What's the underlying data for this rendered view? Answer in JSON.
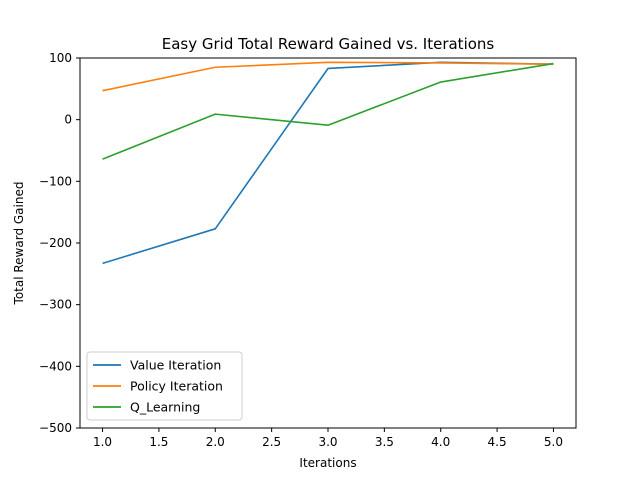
{
  "chart_data": {
    "type": "line",
    "title": "Easy Grid Total Reward Gained vs. Iterations",
    "xlabel": "Iterations",
    "ylabel": "Total Reward Gained",
    "x": [
      1.0,
      2.0,
      3.0,
      4.0,
      5.0
    ],
    "xlim": [
      0.8,
      5.2
    ],
    "ylim": [
      -500,
      100
    ],
    "xticks": [
      1.0,
      1.5,
      2.0,
      2.5,
      3.0,
      3.5,
      4.0,
      4.5,
      5.0
    ],
    "xtick_labels": [
      "1.0",
      "1.5",
      "2.0",
      "2.5",
      "3.0",
      "3.5",
      "4.0",
      "4.5",
      "5.0"
    ],
    "yticks": [
      -500,
      -400,
      -300,
      -200,
      -100,
      0,
      100
    ],
    "ytick_labels": [
      "−500",
      "−400",
      "−300",
      "−200",
      "−100",
      "0",
      "100"
    ],
    "grid": false,
    "legend_position": "lower-left",
    "series": [
      {
        "name": "Value Iteration",
        "color": "#1f77b4",
        "values": [
          -233,
          -177,
          83,
          93,
          90
        ]
      },
      {
        "name": "Policy Iteration",
        "color": "#ff7f0e",
        "values": [
          47,
          85,
          93,
          92,
          90
        ]
      },
      {
        "name": "Q_Learning",
        "color": "#2ca02c",
        "values": [
          -64,
          9,
          -9,
          61,
          91
        ]
      }
    ]
  }
}
